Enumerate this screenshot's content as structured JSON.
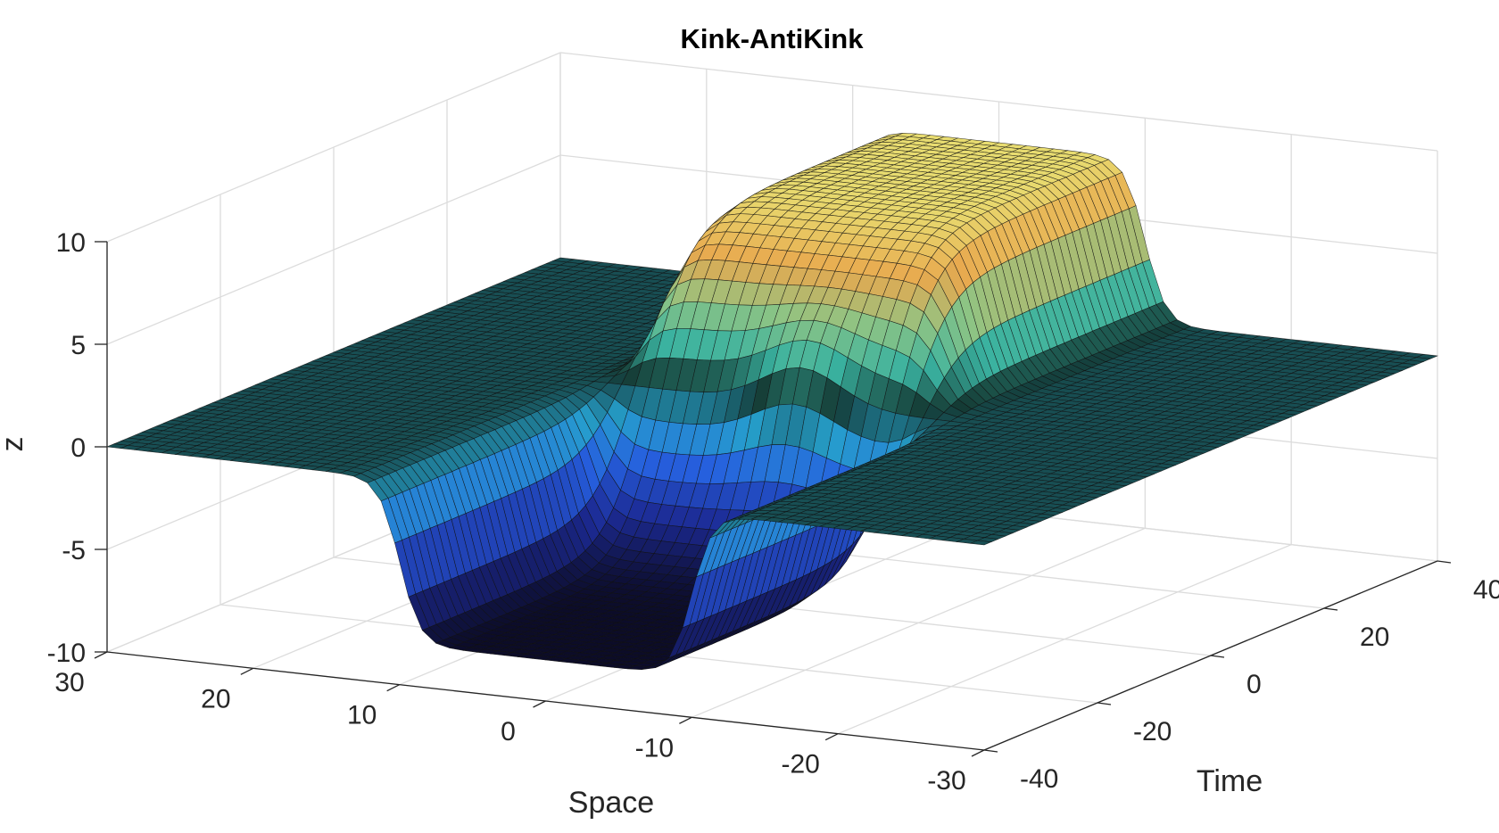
{
  "chart_data": {
    "type": "surface",
    "title": "Kink-AntiKink",
    "xlabel": "Space",
    "ylabel": "Time",
    "zlabel": "z",
    "xlim": [
      -30,
      30
    ],
    "ylim": [
      -40,
      40
    ],
    "zlim": [
      -10,
      10
    ],
    "x_ticks": [
      "-30",
      "-20",
      "-10",
      "0",
      "10",
      "20",
      "30"
    ],
    "y_ticks": [
      "-40",
      "-20",
      "0",
      "20",
      "40"
    ],
    "z_ticks": [
      "-10",
      "-5",
      "0",
      "5",
      "10"
    ],
    "grid": true,
    "colormap": "haxby-like (dark navy to blue to teal to green to orange to yellow)",
    "surface": {
      "x_range": [
        -30,
        30
      ],
      "y_range": [
        -40,
        40
      ],
      "z_at_kink_time_min": -8,
      "z_at_kink_time_max": 8,
      "kink_centers_space": [
        -10,
        10
      ],
      "baseline": 0
    }
  }
}
